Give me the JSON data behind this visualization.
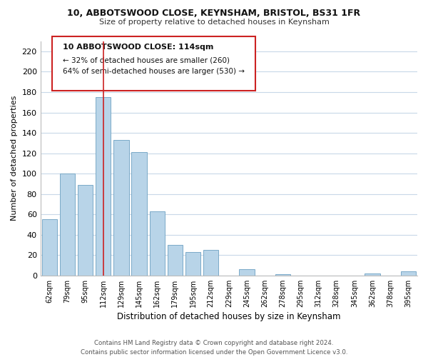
{
  "title": "10, ABBOTSWOOD CLOSE, KEYNSHAM, BRISTOL, BS31 1FR",
  "subtitle": "Size of property relative to detached houses in Keynsham",
  "xlabel": "Distribution of detached houses by size in Keynsham",
  "ylabel": "Number of detached properties",
  "bar_color": "#b8d4e8",
  "bar_edge_color": "#7aaac8",
  "categories": [
    "62sqm",
    "79sqm",
    "95sqm",
    "112sqm",
    "129sqm",
    "145sqm",
    "162sqm",
    "179sqm",
    "195sqm",
    "212sqm",
    "229sqm",
    "245sqm",
    "262sqm",
    "278sqm",
    "295sqm",
    "312sqm",
    "328sqm",
    "345sqm",
    "362sqm",
    "378sqm",
    "395sqm"
  ],
  "values": [
    55,
    100,
    89,
    175,
    133,
    121,
    63,
    30,
    23,
    25,
    0,
    6,
    0,
    1,
    0,
    0,
    0,
    0,
    2,
    0,
    4
  ],
  "ylim": [
    0,
    230
  ],
  "yticks": [
    0,
    20,
    40,
    60,
    80,
    100,
    120,
    140,
    160,
    180,
    200,
    220
  ],
  "annotation_title": "10 ABBOTSWOOD CLOSE: 114sqm",
  "annotation_line1": "← 32% of detached houses are smaller (260)",
  "annotation_line2": "64% of semi-detached houses are larger (530) →",
  "footer_line1": "Contains HM Land Registry data © Crown copyright and database right 2024.",
  "footer_line2": "Contains public sector information licensed under the Open Government Licence v3.0.",
  "bg_color": "#ffffff",
  "grid_color": "#c8d8e8",
  "vline_bar_index": 3,
  "vline_color": "#cc2222"
}
